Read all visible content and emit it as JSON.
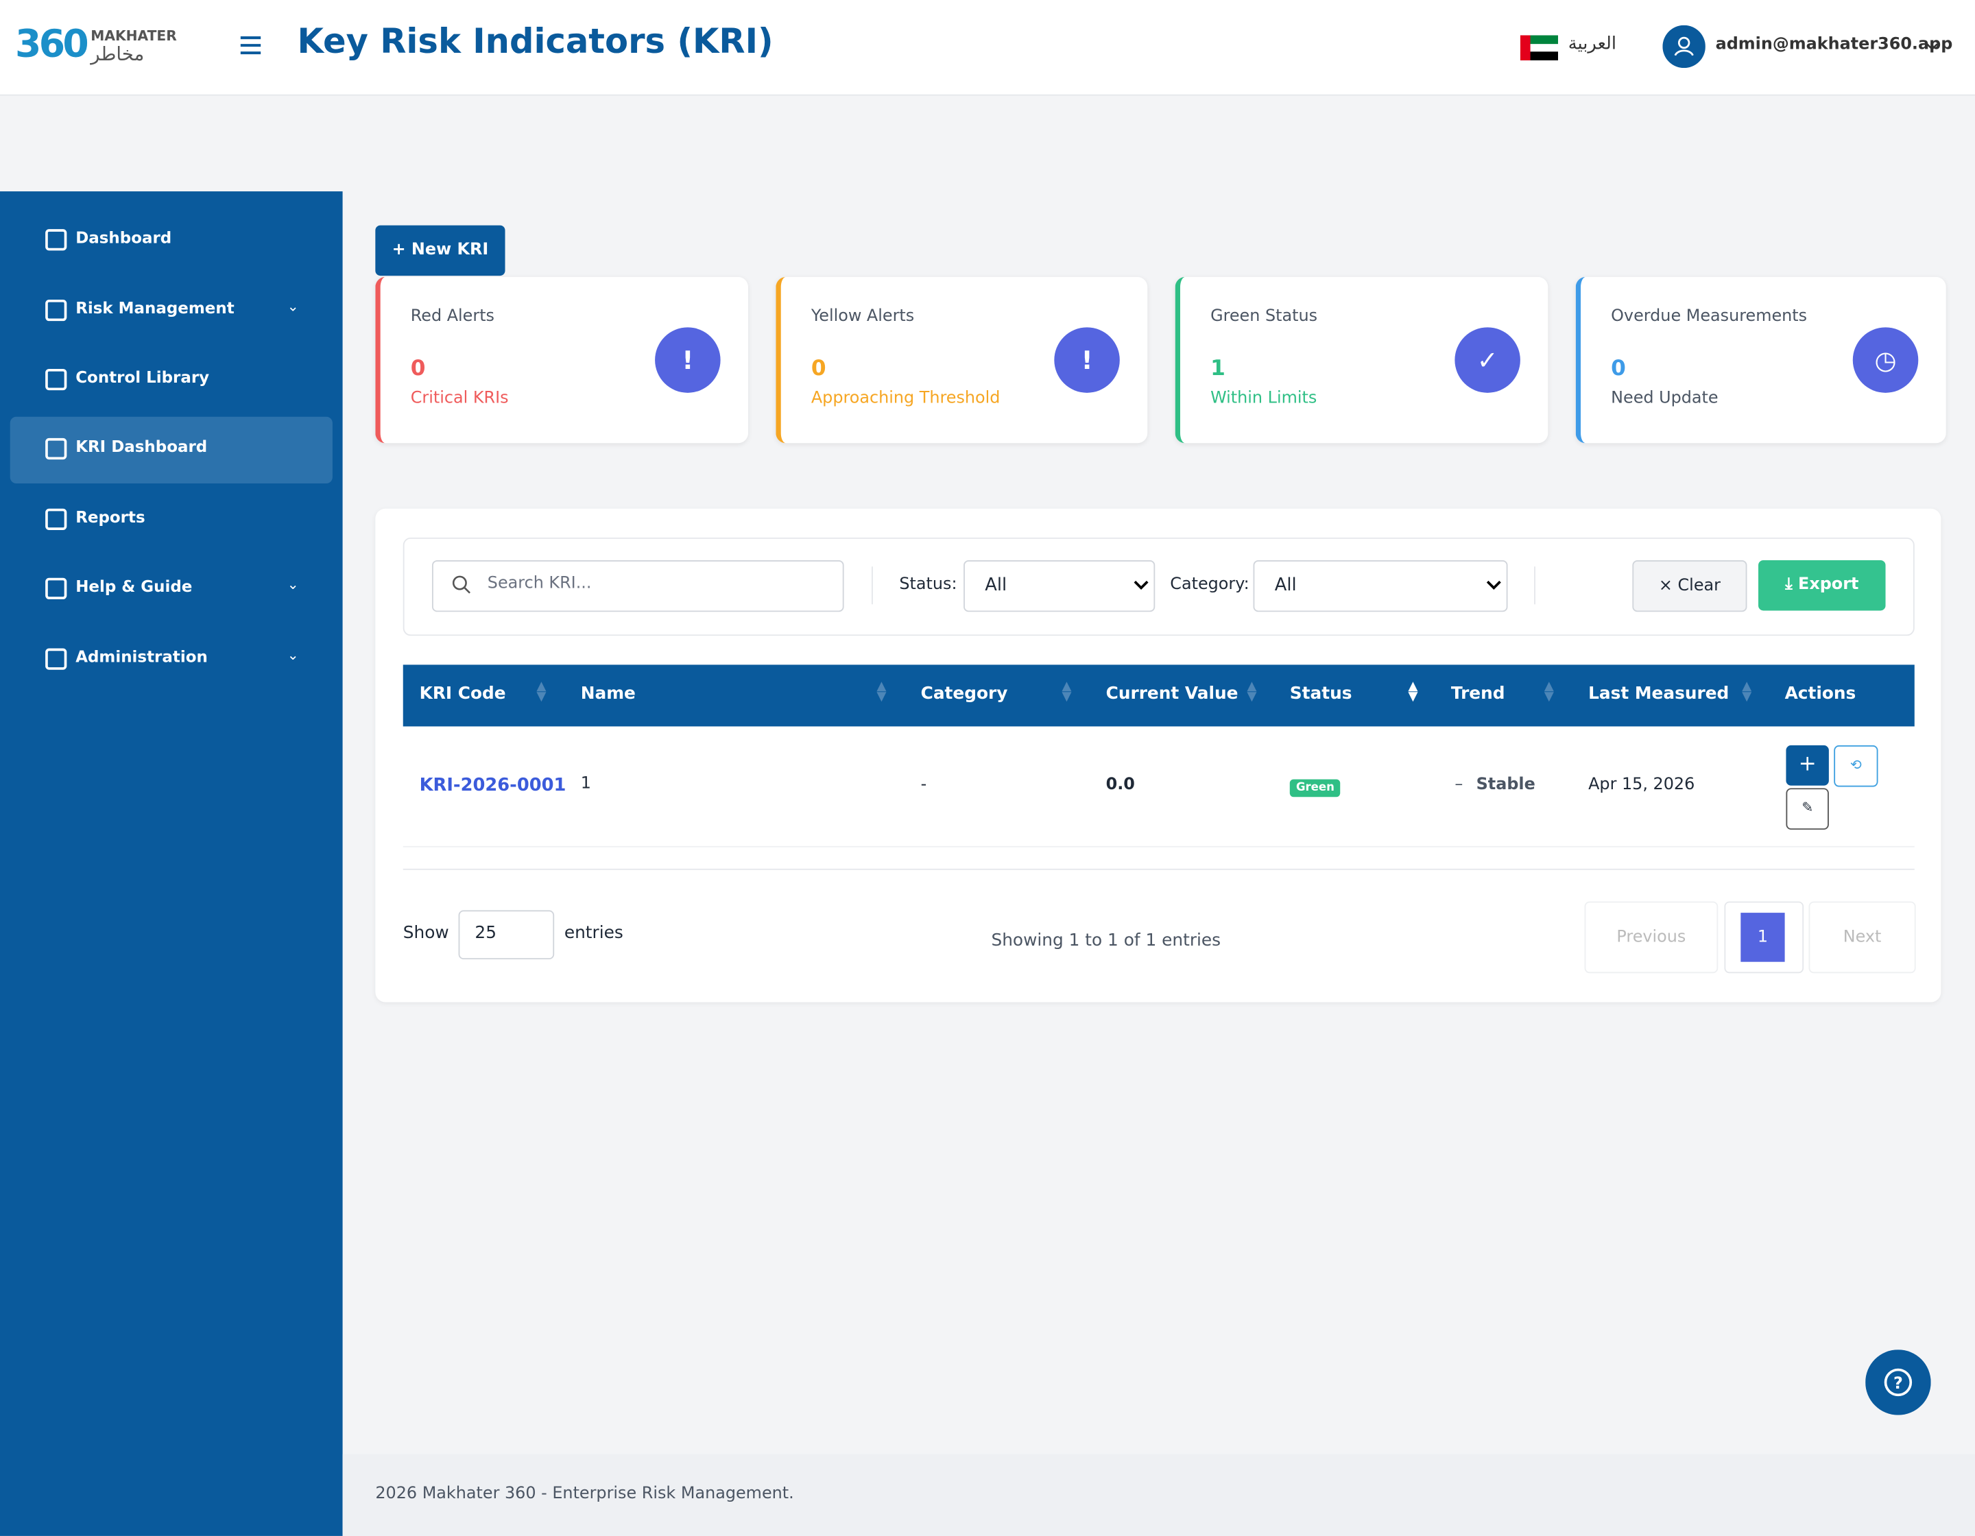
{
  "header": {
    "logo_number": "360",
    "logo_text": "MAKHATER",
    "logo_arabic": "مخاطر",
    "title": "Key Risk Indicators (KRI)",
    "language": "العربية",
    "user": "admin@makhater360.app"
  },
  "sidebar": [
    "Dashboard",
    "Risk Management",
    "Control Library",
    "KRI Dashboard",
    "Reports",
    "Help & Guide",
    "Administration"
  ],
  "new_button": "New KRI",
  "cards": [
    {
      "title": "Red Alerts",
      "value": 0,
      "subtitle": "Critical KRIs"
    },
    {
      "title": "Yellow Alerts",
      "value": 0,
      "subtitle": "Approaching Threshold"
    },
    {
      "title": "Green Status",
      "value": 1,
      "subtitle": "Within Limits"
    },
    {
      "title": "Overdue Measurements",
      "value": 0,
      "subtitle": "Need Update"
    }
  ],
  "filters": {
    "search_placeholder": "Search KRI...",
    "status_label": "Status:",
    "status_value": "All",
    "category_label": "Category:",
    "category_value": "All",
    "clear": "Clear",
    "export": "Export"
  },
  "table": {
    "columns": [
      "KRI Code",
      "Name",
      "Category",
      "Current Value",
      "Status",
      "Trend",
      "Last Measured",
      "Actions"
    ],
    "rows": [
      [
        "KRI-2026-0001",
        "1",
        "-",
        "0.0",
        "Green",
        "Stable",
        "Apr 15, 2026"
      ]
    ]
  },
  "pagination": {
    "show": "Show",
    "page_size": 25,
    "entries": "entries",
    "info": "Showing 1 to 1 of 1 entries",
    "previous": "Previous",
    "page": 1,
    "next": "Next"
  },
  "footer": "2026 Makhater 360 - Enterprise Risk Management."
}
